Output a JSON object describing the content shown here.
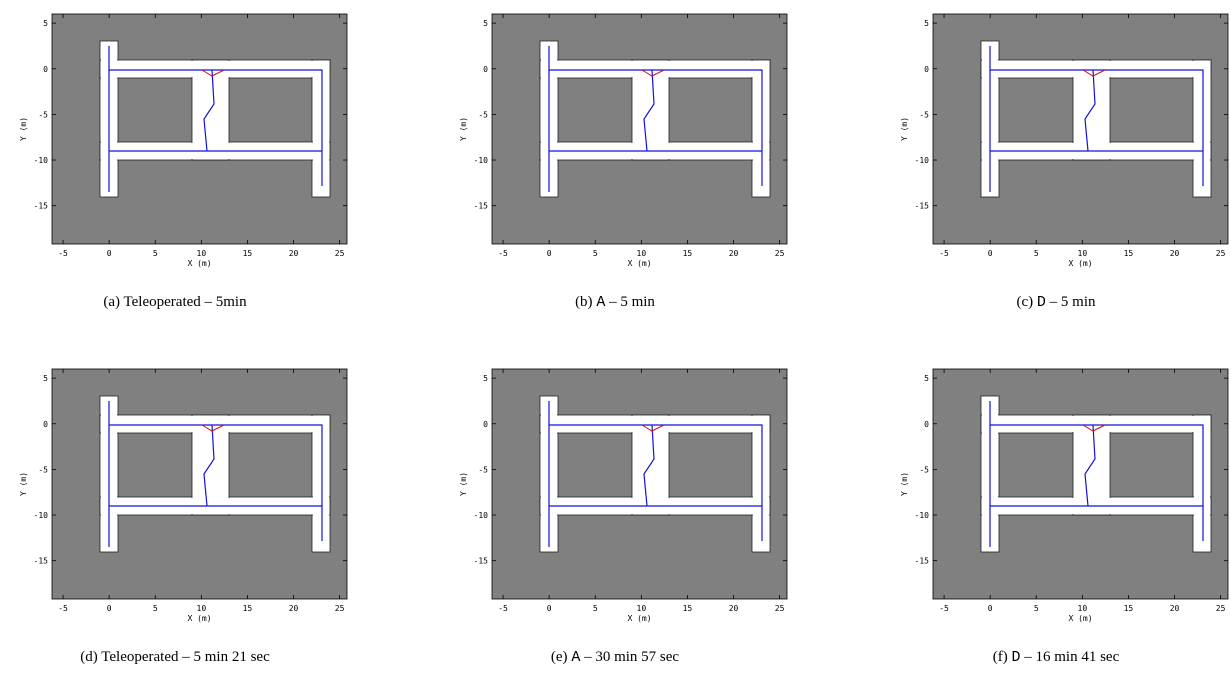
{
  "panels": [
    {
      "caption": {
        "label": "(a)",
        "method": "Teleoperated",
        "rest": "– 5min"
      },
      "xlabel": "X (m)",
      "ylabel": "Y (m)",
      "xlim": [
        -6.2,
        25.8
      ],
      "ylim": [
        -19.2,
        6
      ],
      "xticks": [
        -5,
        0,
        5,
        10,
        15,
        20,
        25
      ],
      "yticks": [
        5,
        0,
        -5,
        -10,
        -15
      ]
    },
    {
      "caption": {
        "label": "(b)",
        "method": "A",
        "rest": "– 5 min"
      },
      "xlabel": "X (m)",
      "ylabel": "Y (m)",
      "xlim": [
        -6.2,
        25.8
      ],
      "ylim": [
        -19.2,
        6
      ],
      "xticks": [
        -5,
        0,
        5,
        10,
        15,
        20,
        25
      ],
      "yticks": [
        5,
        0,
        -5,
        -10,
        -15
      ]
    },
    {
      "caption": {
        "label": "(c)",
        "method": "D",
        "rest": "– 5 min"
      },
      "xlabel": "X (m)",
      "ylabel": "Y (m)",
      "xlim": [
        -6.2,
        25.8
      ],
      "ylim": [
        -19.2,
        6
      ],
      "xticks": [
        -5,
        0,
        5,
        10,
        15,
        20,
        25
      ],
      "yticks": [
        5,
        0,
        -5,
        -10,
        -15
      ]
    },
    {
      "caption": {
        "label": "(d)",
        "method": "Teleoperated",
        "rest": "– 5 min 21 sec"
      },
      "xlabel": "X (m)",
      "ylabel": "Y (m)",
      "xlim": [
        -6.2,
        25.8
      ],
      "ylim": [
        -19.2,
        6
      ],
      "xticks": [
        -5,
        0,
        5,
        10,
        15,
        20,
        25
      ],
      "yticks": [
        5,
        0,
        -5,
        -10,
        -15
      ]
    },
    {
      "caption": {
        "label": "(e)",
        "method": "A",
        "rest": "– 30 min 57 sec"
      },
      "xlabel": "X (m)",
      "ylabel": "Y (m)",
      "xlim": [
        -6.2,
        25.8
      ],
      "ylim": [
        -19.2,
        6
      ],
      "xticks": [
        -5,
        0,
        5,
        10,
        15,
        20,
        25
      ],
      "yticks": [
        5,
        0,
        -5,
        -10,
        -15
      ]
    },
    {
      "caption": {
        "label": "(f)",
        "method": "D",
        "rest": "– 16 min 41 sec"
      },
      "xlabel": "X (m)",
      "ylabel": "Y (m)",
      "xlim": [
        -6.2,
        25.8
      ],
      "ylim": [
        -19.2,
        6
      ],
      "xticks": [
        -5,
        0,
        5,
        10,
        15,
        20,
        25
      ],
      "yticks": [
        5,
        0,
        -5,
        -10,
        -15
      ]
    }
  ]
}
